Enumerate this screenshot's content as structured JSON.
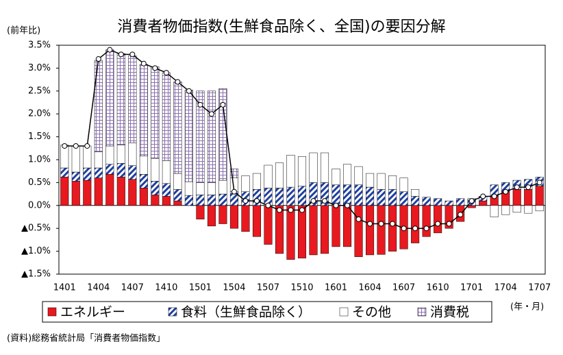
{
  "chart_data": {
    "type": "bar",
    "title": "消費者物価指数(生鮮食品除く、全国)の要因分解",
    "y_label": "(前年比)",
    "x_label": "(年・月)",
    "source": "(資料)総務省統計局「消費者物価指数」",
    "stacked": true,
    "categories": [
      "1401",
      null,
      null,
      "1404",
      null,
      null,
      "1407",
      null,
      null,
      "1410",
      null,
      null,
      "1501",
      null,
      null,
      "1504",
      null,
      null,
      "1507",
      null,
      null,
      "1510",
      null,
      null,
      "1601",
      null,
      null,
      "1604",
      null,
      null,
      "1607",
      null,
      null,
      "1610",
      null,
      null,
      "1701",
      null,
      null,
      "1704",
      null,
      null,
      "1707"
    ],
    "series": [
      {
        "name": "エネルギー",
        "color": "#e8191f",
        "values": [
          0.62,
          0.53,
          0.55,
          0.6,
          0.68,
          0.62,
          0.57,
          0.38,
          0.23,
          0.2,
          0.1,
          0.0,
          -0.3,
          -0.45,
          -0.4,
          -0.5,
          -0.57,
          -0.68,
          -0.85,
          -1.05,
          -1.18,
          -1.15,
          -1.08,
          -1.05,
          -0.9,
          -0.9,
          -1.12,
          -1.08,
          -1.07,
          -1.0,
          -0.95,
          -0.82,
          -0.68,
          -0.6,
          -0.5,
          -0.35,
          -0.05,
          0.1,
          0.2,
          0.3,
          0.35,
          0.35,
          0.42
        ]
      },
      {
        "name": "食料（生鮮食品除く）",
        "color": "#1f3f9f",
        "values": [
          0.2,
          0.2,
          0.27,
          0.22,
          0.22,
          0.3,
          0.3,
          0.3,
          0.3,
          0.28,
          0.25,
          0.22,
          0.23,
          0.23,
          0.25,
          0.3,
          0.3,
          0.35,
          0.38,
          0.38,
          0.4,
          0.42,
          0.5,
          0.5,
          0.45,
          0.45,
          0.45,
          0.4,
          0.35,
          0.35,
          0.3,
          0.2,
          0.18,
          0.15,
          0.1,
          0.15,
          0.12,
          0.1,
          0.25,
          0.2,
          0.2,
          0.22,
          0.2
        ]
      },
      {
        "name": "その他",
        "color": "#ffffff",
        "values": [
          0.5,
          0.57,
          0.48,
          0.35,
          0.4,
          0.4,
          0.5,
          0.4,
          0.5,
          0.5,
          0.35,
          0.3,
          0.27,
          0.27,
          0.3,
          0.3,
          0.35,
          0.35,
          0.5,
          0.55,
          0.7,
          0.65,
          0.65,
          0.65,
          0.35,
          0.45,
          0.4,
          0.3,
          0.35,
          0.3,
          0.3,
          0.15,
          0.0,
          0.0,
          0.0,
          0.0,
          0.03,
          0.0,
          -0.25,
          -0.2,
          -0.15,
          -0.17,
          -0.12
        ]
      },
      {
        "name": "消費税",
        "color": "#8a6fb0",
        "values": [
          0,
          0,
          0,
          2.0,
          2.1,
          2.0,
          1.9,
          2.0,
          2.0,
          1.92,
          2.0,
          2.0,
          2.0,
          2.0,
          2.0,
          0.2,
          0,
          0,
          0,
          0,
          0,
          0,
          0,
          0,
          0,
          0,
          0,
          0,
          0,
          0,
          0,
          0,
          0,
          0,
          0,
          0,
          0,
          0,
          0,
          0,
          0,
          0,
          0
        ]
      }
    ],
    "total_values": [
      1.3,
      1.3,
      1.3,
      3.2,
      3.4,
      3.3,
      3.3,
      3.1,
      3.0,
      2.9,
      2.7,
      2.5,
      2.2,
      2.0,
      2.2,
      0.3,
      0.1,
      0.1,
      0.0,
      -0.1,
      -0.1,
      -0.1,
      0.1,
      0.1,
      0.0,
      0.0,
      -0.3,
      -0.4,
      -0.4,
      -0.4,
      -0.5,
      -0.5,
      -0.5,
      -0.4,
      -0.4,
      -0.2,
      0.1,
      0.2,
      0.2,
      0.3,
      0.4,
      0.4,
      0.5
    ],
    "total_color": "#000000",
    "ylim": [
      -1.5,
      3.5
    ],
    "yticks": [
      {
        "value": 3.5,
        "label": "3.5%"
      },
      {
        "value": 3.0,
        "label": "3.0%"
      },
      {
        "value": 2.5,
        "label": "2.5%"
      },
      {
        "value": 2.0,
        "label": "2.0%"
      },
      {
        "value": 1.5,
        "label": "1.5%"
      },
      {
        "value": 1.0,
        "label": "1.0%"
      },
      {
        "value": 0.5,
        "label": "0.5%"
      },
      {
        "value": 0.0,
        "label": "0.0%"
      },
      {
        "value": -0.5,
        "label": "▲0.5%"
      },
      {
        "value": -1.0,
        "label": "▲1.0%"
      },
      {
        "value": -1.5,
        "label": "▲1.5%"
      }
    ],
    "grid": false
  }
}
